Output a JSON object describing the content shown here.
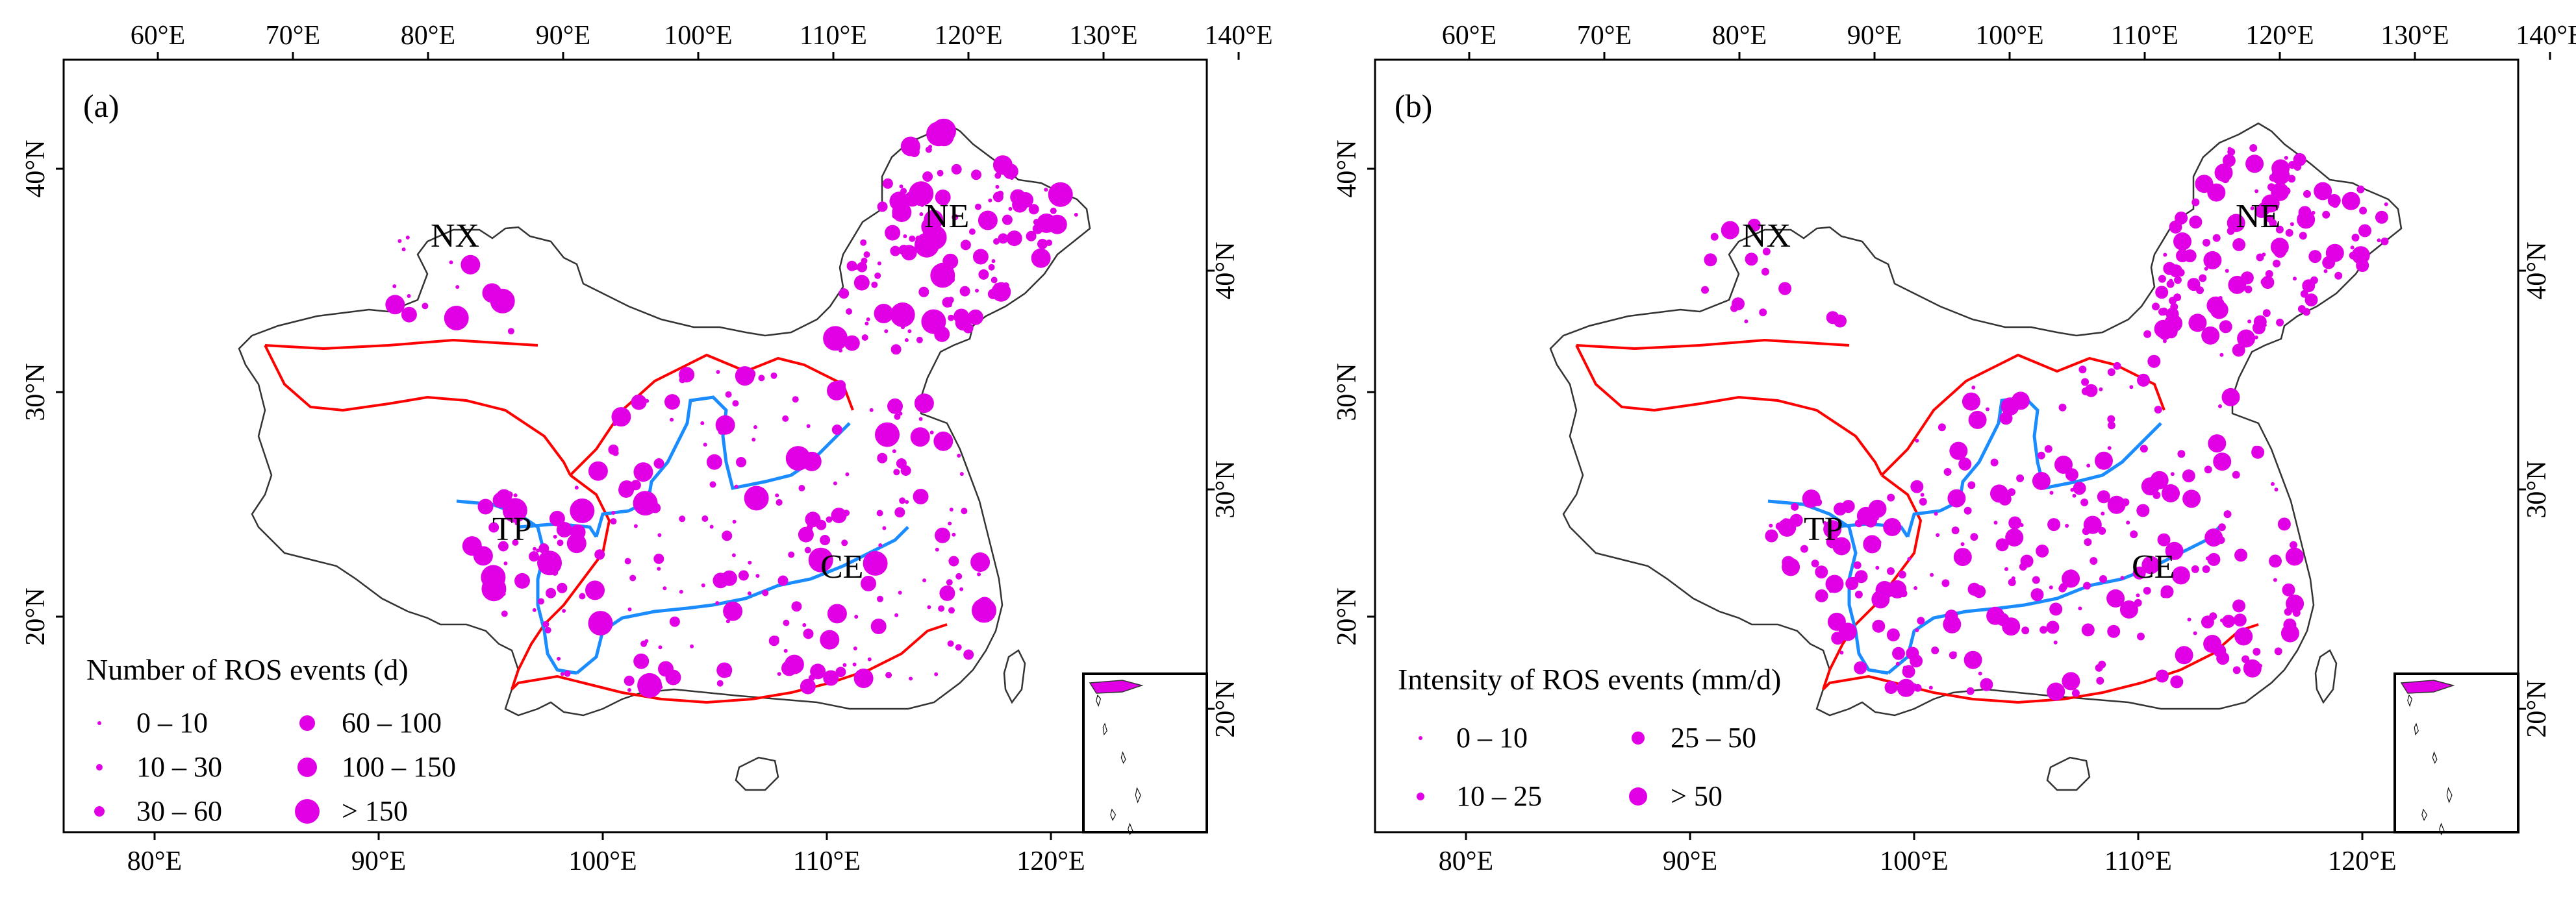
{
  "colors": {
    "dot": "#e100e6",
    "region_border": "#ff0000",
    "river": "#1a8cff",
    "outline": "#333333"
  },
  "ticks": {
    "top_lon": [
      "60°E",
      "70°E",
      "80°E",
      "90°E",
      "100°E",
      "110°E",
      "120°E",
      "130°E",
      "140°E"
    ],
    "bottom_lon": [
      "80°E",
      "90°E",
      "100°E",
      "110°E",
      "120°E"
    ],
    "left_lat": [
      "40°N",
      "30°N",
      "20°N"
    ],
    "right_lat": [
      "40°N",
      "30°N",
      "20°N"
    ]
  },
  "regions": [
    "NX",
    "NE",
    "TP",
    "CE"
  ],
  "panels": [
    {
      "label": "(a)",
      "legend": {
        "title": "Number of ROS events (d)",
        "items": [
          "0 – 10",
          "10 – 30",
          "30 – 60",
          "60 – 100",
          "100 – 150",
          "> 150"
        ]
      }
    },
    {
      "label": "(b)",
      "legend": {
        "title": "Intensity of ROS events (mm/d)",
        "items": [
          "0 – 10",
          "10 – 25",
          "25 – 50",
          "> 50"
        ]
      }
    }
  ]
}
